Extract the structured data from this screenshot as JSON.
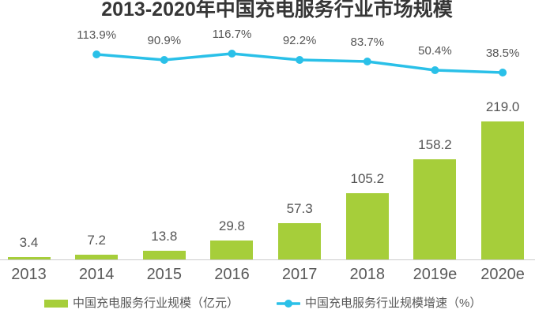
{
  "title": "2013-2020年中国充电服务行业市场规模",
  "colors": {
    "bar": "#a6ce3a",
    "line": "#2ac0e8",
    "title_text": "#363636",
    "value_label_text": "#555555",
    "axis_label_text": "#595959",
    "axis_line": "#cbcbcb"
  },
  "legend": [
    {
      "label": "中国充电服务行业规模（亿元）",
      "marker": "bar-swatch",
      "color": "#a6ce3a"
    },
    {
      "label": "中国充电服务行业规模增速（%）",
      "marker": "line-dot",
      "color": "#2ac0e8"
    }
  ],
  "chart_data": {
    "type": "combo-bar-line",
    "title": "2013-2020年中国充电服务行业市场规模",
    "categories": [
      "2013",
      "2014",
      "2015",
      "2016",
      "2017",
      "2018",
      "2019e",
      "2020e"
    ],
    "series": [
      {
        "name": "中国充电服务行业规模（亿元）",
        "type": "bar",
        "unit": "亿元",
        "color": "#a6ce3a",
        "values": [
          3.4,
          7.2,
          13.8,
          29.8,
          57.3,
          105.2,
          158.2,
          219.0
        ],
        "labels": [
          "3.4",
          "7.2",
          "13.8",
          "29.8",
          "57.3",
          "105.2",
          "158.2",
          "219.0"
        ]
      },
      {
        "name": "中国充电服务行业规模增速（%）",
        "type": "line",
        "unit": "%",
        "color": "#2ac0e8",
        "values": [
          null,
          113.9,
          90.9,
          116.7,
          92.2,
          83.7,
          50.4,
          38.5
        ],
        "labels": [
          null,
          "113.9%",
          "90.9%",
          "116.7%",
          "92.2%",
          "83.7%",
          "50.4%",
          "38.5%"
        ]
      }
    ],
    "xlabel": "",
    "ylabel": "",
    "ylim": [
      0,
      230
    ],
    "grid": false,
    "legend_position": "bottom"
  }
}
